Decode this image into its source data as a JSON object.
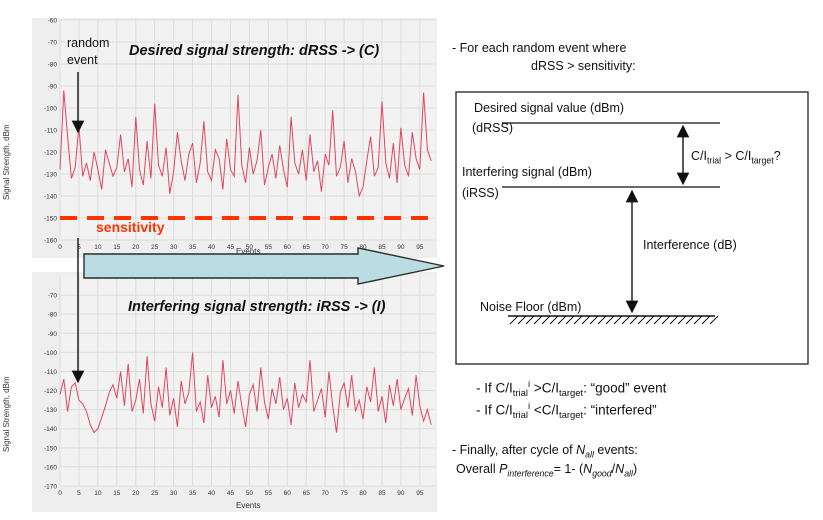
{
  "chart_data": [
    {
      "type": "line",
      "title": "Desired signal strength: dRSS -> (C)",
      "xlabel": "Events",
      "ylabel": "Signal Strength, dBm",
      "xlim": [
        0,
        99
      ],
      "ylim": [
        -160,
        -60
      ],
      "yticks": [
        -60,
        -70,
        -80,
        -90,
        -100,
        -110,
        -120,
        -130,
        -140,
        -150,
        -160
      ],
      "xticks": [
        0,
        5,
        10,
        15,
        20,
        25,
        30,
        35,
        40,
        45,
        50,
        55,
        60,
        65,
        70,
        75,
        80,
        85,
        90,
        95
      ],
      "grid": true,
      "annotations": [
        "random",
        "event",
        "sensitivity"
      ],
      "sensitivity": -150,
      "random_event_x": 5,
      "series": [
        {
          "values": [
            -128,
            -92,
            -113,
            -132,
            -127,
            -108,
            -131,
            -125,
            -133,
            -120,
            -128,
            -137,
            -119,
            -125,
            -131,
            -127,
            -112,
            -129,
            -123,
            -136,
            -104,
            -128,
            -135,
            -115,
            -132,
            -98,
            -126,
            -131,
            -118,
            -139,
            -129,
            -111,
            -124,
            -133,
            -121,
            -116,
            -134,
            -125,
            -106,
            -129,
            -133,
            -119,
            -123,
            -137,
            -114,
            -128,
            -131,
            -94,
            -126,
            -134,
            -118,
            -130,
            -124,
            -110,
            -135,
            -127,
            -121,
            -132,
            -117,
            -128,
            -136,
            -104,
            -125,
            -130,
            -119,
            -133,
            -112,
            -129,
            -124,
            -138,
            -121,
            -126,
            -101,
            -131,
            -127,
            -115,
            -134,
            -123,
            -129,
            -140,
            -136,
            -124,
            -113,
            -131,
            -127,
            -97,
            -125,
            -132,
            -116,
            -134,
            -109,
            -126,
            -131,
            -111,
            -123,
            -128,
            -93,
            -119,
            -124
          ]
        }
      ]
    },
    {
      "type": "line",
      "title": "Interfering signal strength: iRSS -> (I)",
      "xlabel": "Events",
      "ylabel": "Signal Strength, dBm",
      "xlim": [
        0,
        99
      ],
      "ylim": [
        -170,
        -60
      ],
      "yticks": [
        -70,
        -80,
        -90,
        -100,
        -110,
        -120,
        -130,
        -140,
        -150,
        -160,
        -170
      ],
      "xticks": [
        0,
        5,
        10,
        15,
        20,
        25,
        30,
        35,
        40,
        45,
        50,
        55,
        60,
        65,
        70,
        75,
        80,
        85,
        90,
        95
      ],
      "grid": true,
      "series": [
        {
          "values": [
            -122,
            -114,
            -131,
            -118,
            -116,
            -125,
            -127,
            -131,
            -138,
            -142,
            -140,
            -134,
            -128,
            -121,
            -117,
            -124,
            -110,
            -128,
            -106,
            -131,
            -125,
            -114,
            -132,
            -102,
            -127,
            -136,
            -118,
            -129,
            -108,
            -133,
            -124,
            -139,
            -115,
            -127,
            -121,
            -100,
            -131,
            -126,
            -137,
            -112,
            -129,
            -123,
            -134,
            -104,
            -127,
            -120,
            -132,
            -115,
            -128,
            -139,
            -122,
            -117,
            -131,
            -108,
            -126,
            -135,
            -119,
            -127,
            -113,
            -130,
            -124,
            -138,
            -116,
            -129,
            -122,
            -126,
            -104,
            -131,
            -125,
            -119,
            -134,
            -110,
            -128,
            -142,
            -121,
            -116,
            -129,
            -112,
            -131,
            -125,
            -135,
            -118,
            -126,
            -108,
            -131,
            -123,
            -137,
            -117,
            -128,
            -114,
            -130,
            -124,
            -119,
            -133,
            -112,
            -128,
            -136,
            -130,
            -138
          ]
        }
      ]
    }
  ],
  "labels": {
    "random": "random",
    "event": "event",
    "sensitivity": "sensitivity",
    "x_axis": "Events",
    "y_axis": "Signal Strength, dBm"
  },
  "notes": {
    "intro_line1": "- For each random event where",
    "intro_line2": "dRSS > sensitivity:",
    "box": {
      "desired_label": "Desired signal value (dBm)",
      "desired_abbr": "(dRSS)",
      "interfering_label": "Interfering signal (dBm)",
      "interfering_abbr": "(iRSS)",
      "interference_label": "Interference (dB)",
      "noise_floor_label": "Noise Floor (dBm)"
    },
    "ratio": {
      "c": "C/I",
      "trial": "trial",
      "gt": " > C/I",
      "target": "target",
      "q": "?"
    },
    "good": {
      "pre": "- If C/I",
      "sup": "i",
      "sub1": "trial",
      "mid": " >C/I",
      "sub2": "target",
      "post": ": “good” event"
    },
    "interfered": {
      "pre": "- If C/I",
      "sup": "i",
      "sub1": "trial",
      "mid": " <C/I",
      "sub2": "target",
      "post": ": “interfered”"
    },
    "finally": {
      "line1_pre": "- Finally, after cycle of ",
      "n": "N",
      "all": "all",
      "line1_post": " events:",
      "line2_pre": "Overall ",
      "p": "P",
      "interference": "interference",
      "eq": "= 1- (",
      "good": "good",
      "slash": "/",
      "close": ")"
    }
  },
  "colors": {
    "plot_bg": "#f2f2f2",
    "grid": "#dcdcdc",
    "line": "#e0475a",
    "sensitivity": "#ff3300",
    "arrow_fill": "#b9dde3",
    "arrow_stroke": "#2b2b2b"
  }
}
